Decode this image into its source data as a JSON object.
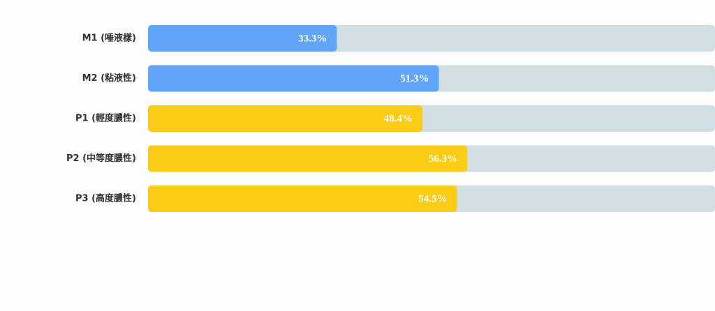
{
  "chart_data": {
    "type": "hbar",
    "categories": [
      "M1 (唾液樣)",
      "M2 (粘液性)",
      "P1 (輕度膿性)",
      "P2 (中等度膿性)",
      "P3 (高度膿性)"
    ],
    "values": [
      33.3,
      51.3,
      48.4,
      56.3,
      54.5
    ],
    "value_labels": [
      "33.3%",
      "51.3%",
      "48.4%",
      "56.3%",
      "54.5%"
    ],
    "colors": [
      "#60a5fa",
      "#60a5fa",
      "#facc15",
      "#facc15",
      "#facc15"
    ],
    "track_color": "#d1dfe3",
    "xlim": [
      0,
      100
    ]
  }
}
